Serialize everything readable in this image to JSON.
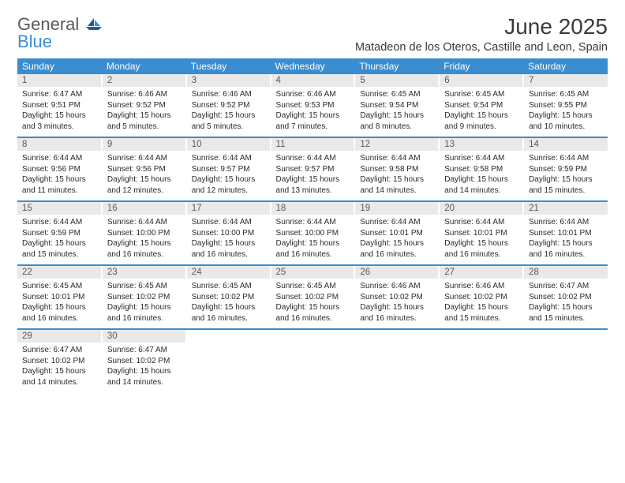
{
  "logo": {
    "text1": "General",
    "text2": "Blue"
  },
  "title": "June 2025",
  "location": "Matadeon de los Oteros, Castille and Leon, Spain",
  "day_headers": [
    "Sunday",
    "Monday",
    "Tuesday",
    "Wednesday",
    "Thursday",
    "Friday",
    "Saturday"
  ],
  "colors": {
    "accent": "#3a8dd0",
    "daynum_bg": "#e9e9e9",
    "text": "#2a2a2a"
  },
  "weeks": [
    [
      {
        "n": "1",
        "sr": "6:47 AM",
        "ss": "9:51 PM",
        "dl": "15 hours and 3 minutes."
      },
      {
        "n": "2",
        "sr": "6:46 AM",
        "ss": "9:52 PM",
        "dl": "15 hours and 5 minutes."
      },
      {
        "n": "3",
        "sr": "6:46 AM",
        "ss": "9:52 PM",
        "dl": "15 hours and 5 minutes."
      },
      {
        "n": "4",
        "sr": "6:46 AM",
        "ss": "9:53 PM",
        "dl": "15 hours and 7 minutes."
      },
      {
        "n": "5",
        "sr": "6:45 AM",
        "ss": "9:54 PM",
        "dl": "15 hours and 8 minutes."
      },
      {
        "n": "6",
        "sr": "6:45 AM",
        "ss": "9:54 PM",
        "dl": "15 hours and 9 minutes."
      },
      {
        "n": "7",
        "sr": "6:45 AM",
        "ss": "9:55 PM",
        "dl": "15 hours and 10 minutes."
      }
    ],
    [
      {
        "n": "8",
        "sr": "6:44 AM",
        "ss": "9:56 PM",
        "dl": "15 hours and 11 minutes."
      },
      {
        "n": "9",
        "sr": "6:44 AM",
        "ss": "9:56 PM",
        "dl": "15 hours and 12 minutes."
      },
      {
        "n": "10",
        "sr": "6:44 AM",
        "ss": "9:57 PM",
        "dl": "15 hours and 12 minutes."
      },
      {
        "n": "11",
        "sr": "6:44 AM",
        "ss": "9:57 PM",
        "dl": "15 hours and 13 minutes."
      },
      {
        "n": "12",
        "sr": "6:44 AM",
        "ss": "9:58 PM",
        "dl": "15 hours and 14 minutes."
      },
      {
        "n": "13",
        "sr": "6:44 AM",
        "ss": "9:58 PM",
        "dl": "15 hours and 14 minutes."
      },
      {
        "n": "14",
        "sr": "6:44 AM",
        "ss": "9:59 PM",
        "dl": "15 hours and 15 minutes."
      }
    ],
    [
      {
        "n": "15",
        "sr": "6:44 AM",
        "ss": "9:59 PM",
        "dl": "15 hours and 15 minutes."
      },
      {
        "n": "16",
        "sr": "6:44 AM",
        "ss": "10:00 PM",
        "dl": "15 hours and 16 minutes."
      },
      {
        "n": "17",
        "sr": "6:44 AM",
        "ss": "10:00 PM",
        "dl": "15 hours and 16 minutes."
      },
      {
        "n": "18",
        "sr": "6:44 AM",
        "ss": "10:00 PM",
        "dl": "15 hours and 16 minutes."
      },
      {
        "n": "19",
        "sr": "6:44 AM",
        "ss": "10:01 PM",
        "dl": "15 hours and 16 minutes."
      },
      {
        "n": "20",
        "sr": "6:44 AM",
        "ss": "10:01 PM",
        "dl": "15 hours and 16 minutes."
      },
      {
        "n": "21",
        "sr": "6:44 AM",
        "ss": "10:01 PM",
        "dl": "15 hours and 16 minutes."
      }
    ],
    [
      {
        "n": "22",
        "sr": "6:45 AM",
        "ss": "10:01 PM",
        "dl": "15 hours and 16 minutes."
      },
      {
        "n": "23",
        "sr": "6:45 AM",
        "ss": "10:02 PM",
        "dl": "15 hours and 16 minutes."
      },
      {
        "n": "24",
        "sr": "6:45 AM",
        "ss": "10:02 PM",
        "dl": "15 hours and 16 minutes."
      },
      {
        "n": "25",
        "sr": "6:45 AM",
        "ss": "10:02 PM",
        "dl": "15 hours and 16 minutes."
      },
      {
        "n": "26",
        "sr": "6:46 AM",
        "ss": "10:02 PM",
        "dl": "15 hours and 16 minutes."
      },
      {
        "n": "27",
        "sr": "6:46 AM",
        "ss": "10:02 PM",
        "dl": "15 hours and 15 minutes."
      },
      {
        "n": "28",
        "sr": "6:47 AM",
        "ss": "10:02 PM",
        "dl": "15 hours and 15 minutes."
      }
    ],
    [
      {
        "n": "29",
        "sr": "6:47 AM",
        "ss": "10:02 PM",
        "dl": "15 hours and 14 minutes."
      },
      {
        "n": "30",
        "sr": "6:47 AM",
        "ss": "10:02 PM",
        "dl": "15 hours and 14 minutes."
      },
      null,
      null,
      null,
      null,
      null
    ]
  ],
  "labels": {
    "sunrise": "Sunrise: ",
    "sunset": "Sunset: ",
    "daylight": "Daylight: "
  }
}
